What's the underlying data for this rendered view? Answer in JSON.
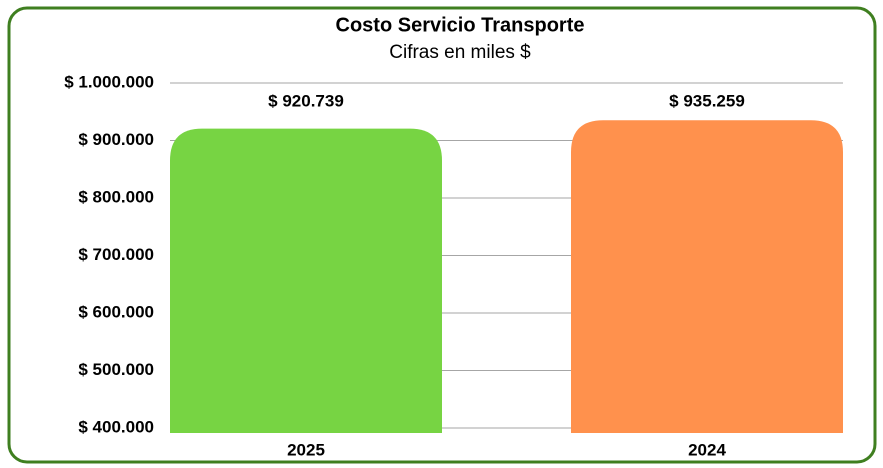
{
  "chart_data": {
    "type": "bar",
    "title": "Costo Servicio Transporte",
    "subtitle": "Cifras en miles $",
    "categories": [
      "2025",
      "2024"
    ],
    "values": [
      920739,
      935259
    ],
    "value_labels": [
      "$ 920.739",
      "$ 935.259"
    ],
    "colors": [
      "#77d443",
      "#ff914d"
    ],
    "ylim": [
      400000,
      1000000
    ],
    "yticks": [
      {
        "value": 400000,
        "label": "$ 400.000"
      },
      {
        "value": 500000,
        "label": "$ 500.000"
      },
      {
        "value": 600000,
        "label": "$ 600.000"
      },
      {
        "value": 700000,
        "label": "$ 700.000"
      },
      {
        "value": 800000,
        "label": "$ 800.000"
      },
      {
        "value": 900000,
        "label": "$ 900.000"
      },
      {
        "value": 1000000,
        "label": "$ 1.000.000"
      }
    ],
    "grid": true
  }
}
